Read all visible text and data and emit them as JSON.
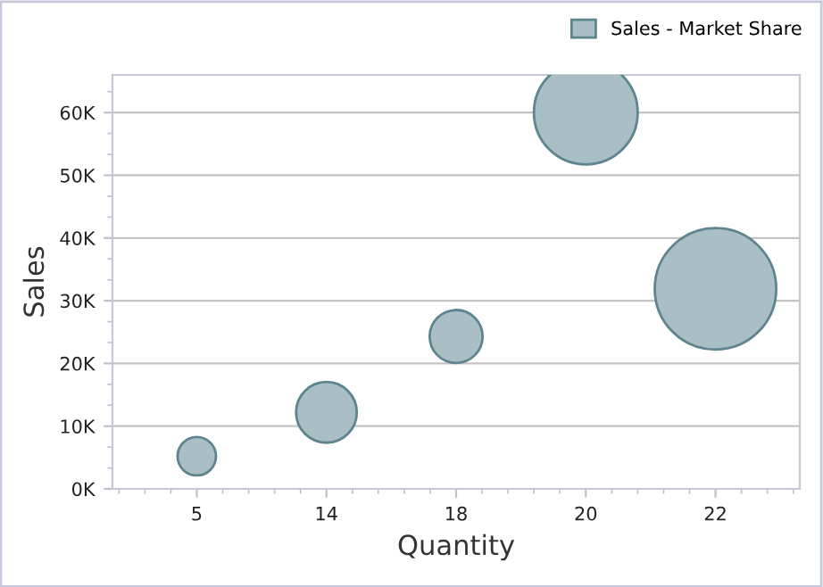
{
  "chart_data": {
    "type": "bubble",
    "xlabel": "Quantity",
    "ylabel": "Sales",
    "categories": [
      "5",
      "14",
      "18",
      "20",
      "22"
    ],
    "series": [
      {
        "name": "Sales - Market Share",
        "color": "#a9bfc5",
        "values": [
          5200,
          12200,
          24300,
          60000,
          31900
        ],
        "sizes": [
          0.1,
          0.25,
          0.19,
          0.73,
          1
        ]
      }
    ],
    "ylim": [
      0,
      66000
    ],
    "yticks": [
      {
        "value": 0,
        "label": "0K"
      },
      {
        "value": 10000,
        "label": "10K"
      },
      {
        "value": 20000,
        "label": "20K"
      },
      {
        "value": 30000,
        "label": "30K"
      },
      {
        "value": 40000,
        "label": "40K"
      },
      {
        "value": 50000,
        "label": "50K"
      },
      {
        "value": 60000,
        "label": "60K"
      }
    ],
    "grid": "y",
    "legend": "top right"
  }
}
